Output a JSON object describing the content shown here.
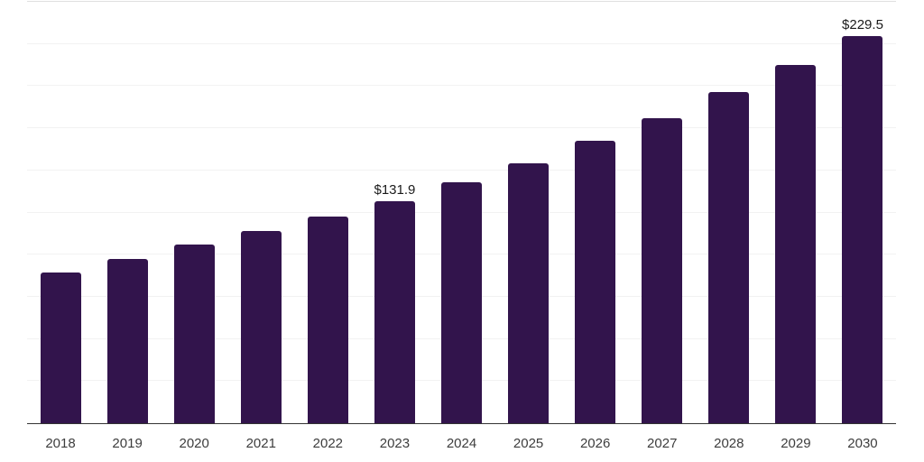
{
  "chart_data": {
    "type": "bar",
    "title": "",
    "xlabel": "",
    "ylabel": "",
    "categories": [
      "2018",
      "2019",
      "2020",
      "2021",
      "2022",
      "2023",
      "2024",
      "2025",
      "2026",
      "2027",
      "2028",
      "2029",
      "2030"
    ],
    "values": [
      89.6,
      97.7,
      105.8,
      114.3,
      122.4,
      131.9,
      143.1,
      154.4,
      167.7,
      181.1,
      196.5,
      212.5,
      229.5
    ],
    "data_labels": [
      "",
      "",
      "",
      "",
      "",
      "$131.9",
      "",
      "",
      "",
      "",
      "",
      "",
      "$229.5"
    ],
    "ylim": [
      0,
      250
    ],
    "gridline_interval": 25,
    "grid": "on",
    "legend": "none",
    "colors": {
      "bar": "#32144c",
      "data_label": "#1a1a1a",
      "tick_label": "#3d3d3d",
      "gridline": "#f2f2f2",
      "top_gridline": "#e0e0e0",
      "axis_line": "#333333",
      "background": "#ffffff"
    }
  }
}
